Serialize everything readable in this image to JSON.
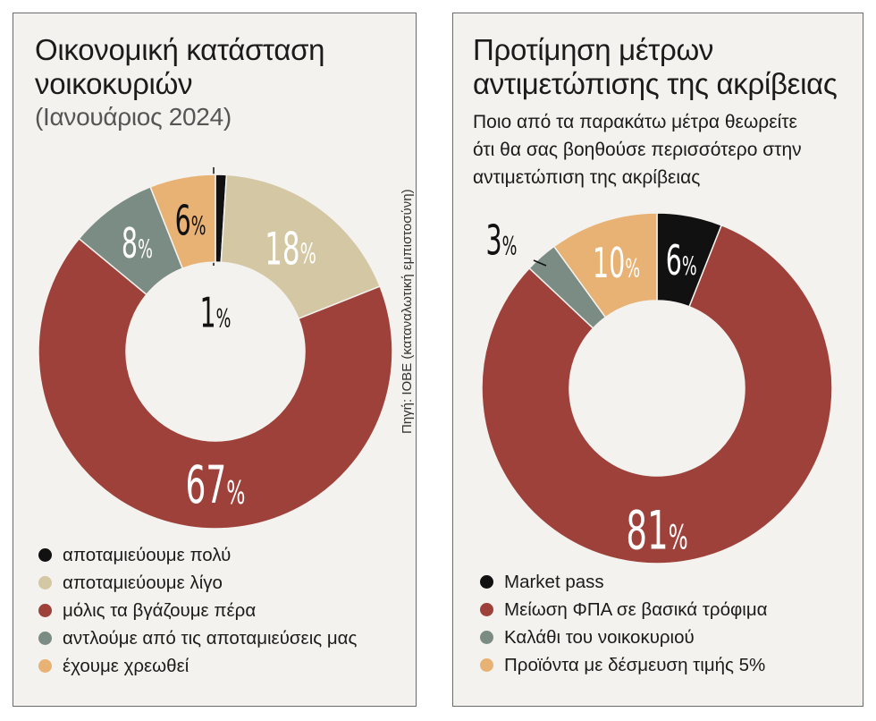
{
  "source": "Πηγή: ΙΟΒΕ (καταναλωτική εμπιστοσύνη)",
  "chart_data": [
    {
      "type": "pie",
      "subtype": "donut",
      "title": "Οικονομική κατάσταση νοικοκυριών",
      "title_lines": [
        "Οικονομική κατάσταση",
        "νοικοκυριών"
      ],
      "subtitle": "(Ιανουάριος 2024)",
      "slices": [
        {
          "label": "αποταμιεύουμε πολύ",
          "value": 1,
          "text": "1%",
          "color": "#111111"
        },
        {
          "label": "αποταμιεύουμε λίγο",
          "value": 18,
          "text": "18%",
          "color": "#d4c7a3"
        },
        {
          "label": "μόλις τα βγάζουμε πέρα",
          "value": 67,
          "text": "67%",
          "color": "#9e413a"
        },
        {
          "label": "αντλούμε από τις αποταμιεύσεις μας",
          "value": 8,
          "text": "8%",
          "color": "#7b8c84"
        },
        {
          "label": "έχουμε χρεωθεί",
          "value": 6,
          "text": "6%",
          "color": "#e8b275"
        }
      ]
    },
    {
      "type": "pie",
      "subtype": "donut",
      "title": "Προτίμηση μέτρων αντιμετώπισης της ακρίβειας",
      "title_lines": [
        "Προτίμηση μέτρων",
        "αντιμετώπισης της ακρίβειας"
      ],
      "question": "Ποιο από τα παρακάτω μέτρα θεωρείτε ότι θα σας βοηθούσε περισσότερο στην αντιμετώπιση της ακρίβειας",
      "question_lines": [
        "Ποιο από τα παρακάτω μέτρα θεωρείτε",
        "ότι θα σας βοηθούσε περισσότερο στην",
        "αντιμετώπιση της ακρίβειας"
      ],
      "slices": [
        {
          "label": "Market pass",
          "value": 6,
          "text": "6%",
          "color": "#111111"
        },
        {
          "label": "Μείωση ΦΠΑ σε βασικά τρόφιμα",
          "value": 81,
          "text": "81%",
          "color": "#9e413a"
        },
        {
          "label": "Καλάθι του νοικοκυριού",
          "value": 3,
          "text": "3%",
          "color": "#7b8c84"
        },
        {
          "label": "Προϊόντα με δέσμευση τιμής 5%",
          "value": 10,
          "text": "10%",
          "color": "#e8b275"
        }
      ]
    }
  ]
}
